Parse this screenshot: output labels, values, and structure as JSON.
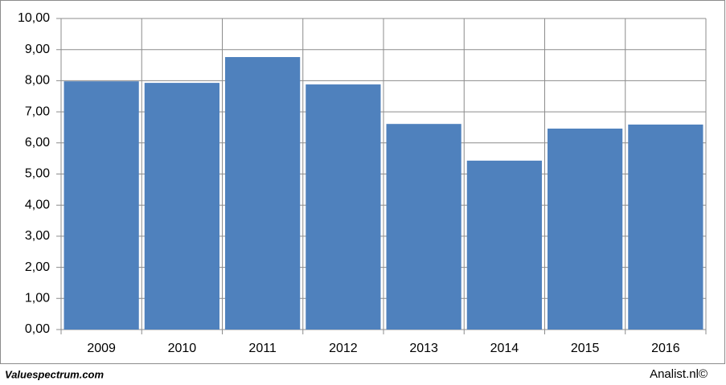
{
  "chart_data": {
    "type": "bar",
    "categories": [
      "2009",
      "2010",
      "2011",
      "2012",
      "2013",
      "2014",
      "2015",
      "2016"
    ],
    "values": [
      7.98,
      7.93,
      8.76,
      7.88,
      6.61,
      5.43,
      6.46,
      6.59
    ],
    "color": "#4f81bd",
    "ylim": [
      0,
      10
    ],
    "yticks": [
      {
        "value": 0,
        "label": "0,00"
      },
      {
        "value": 1,
        "label": "1,00"
      },
      {
        "value": 2,
        "label": "2,00"
      },
      {
        "value": 3,
        "label": "3,00"
      },
      {
        "value": 4,
        "label": "4,00"
      },
      {
        "value": 5,
        "label": "5,00"
      },
      {
        "value": 6,
        "label": "6,00"
      },
      {
        "value": 7,
        "label": "7,00"
      },
      {
        "value": 8,
        "label": "8,00"
      },
      {
        "value": 9,
        "label": "9,00"
      },
      {
        "value": 10,
        "label": "10,00"
      }
    ],
    "grid": true,
    "source_left": "Valuespectrum.com",
    "source_right": "Analist.nl©"
  }
}
